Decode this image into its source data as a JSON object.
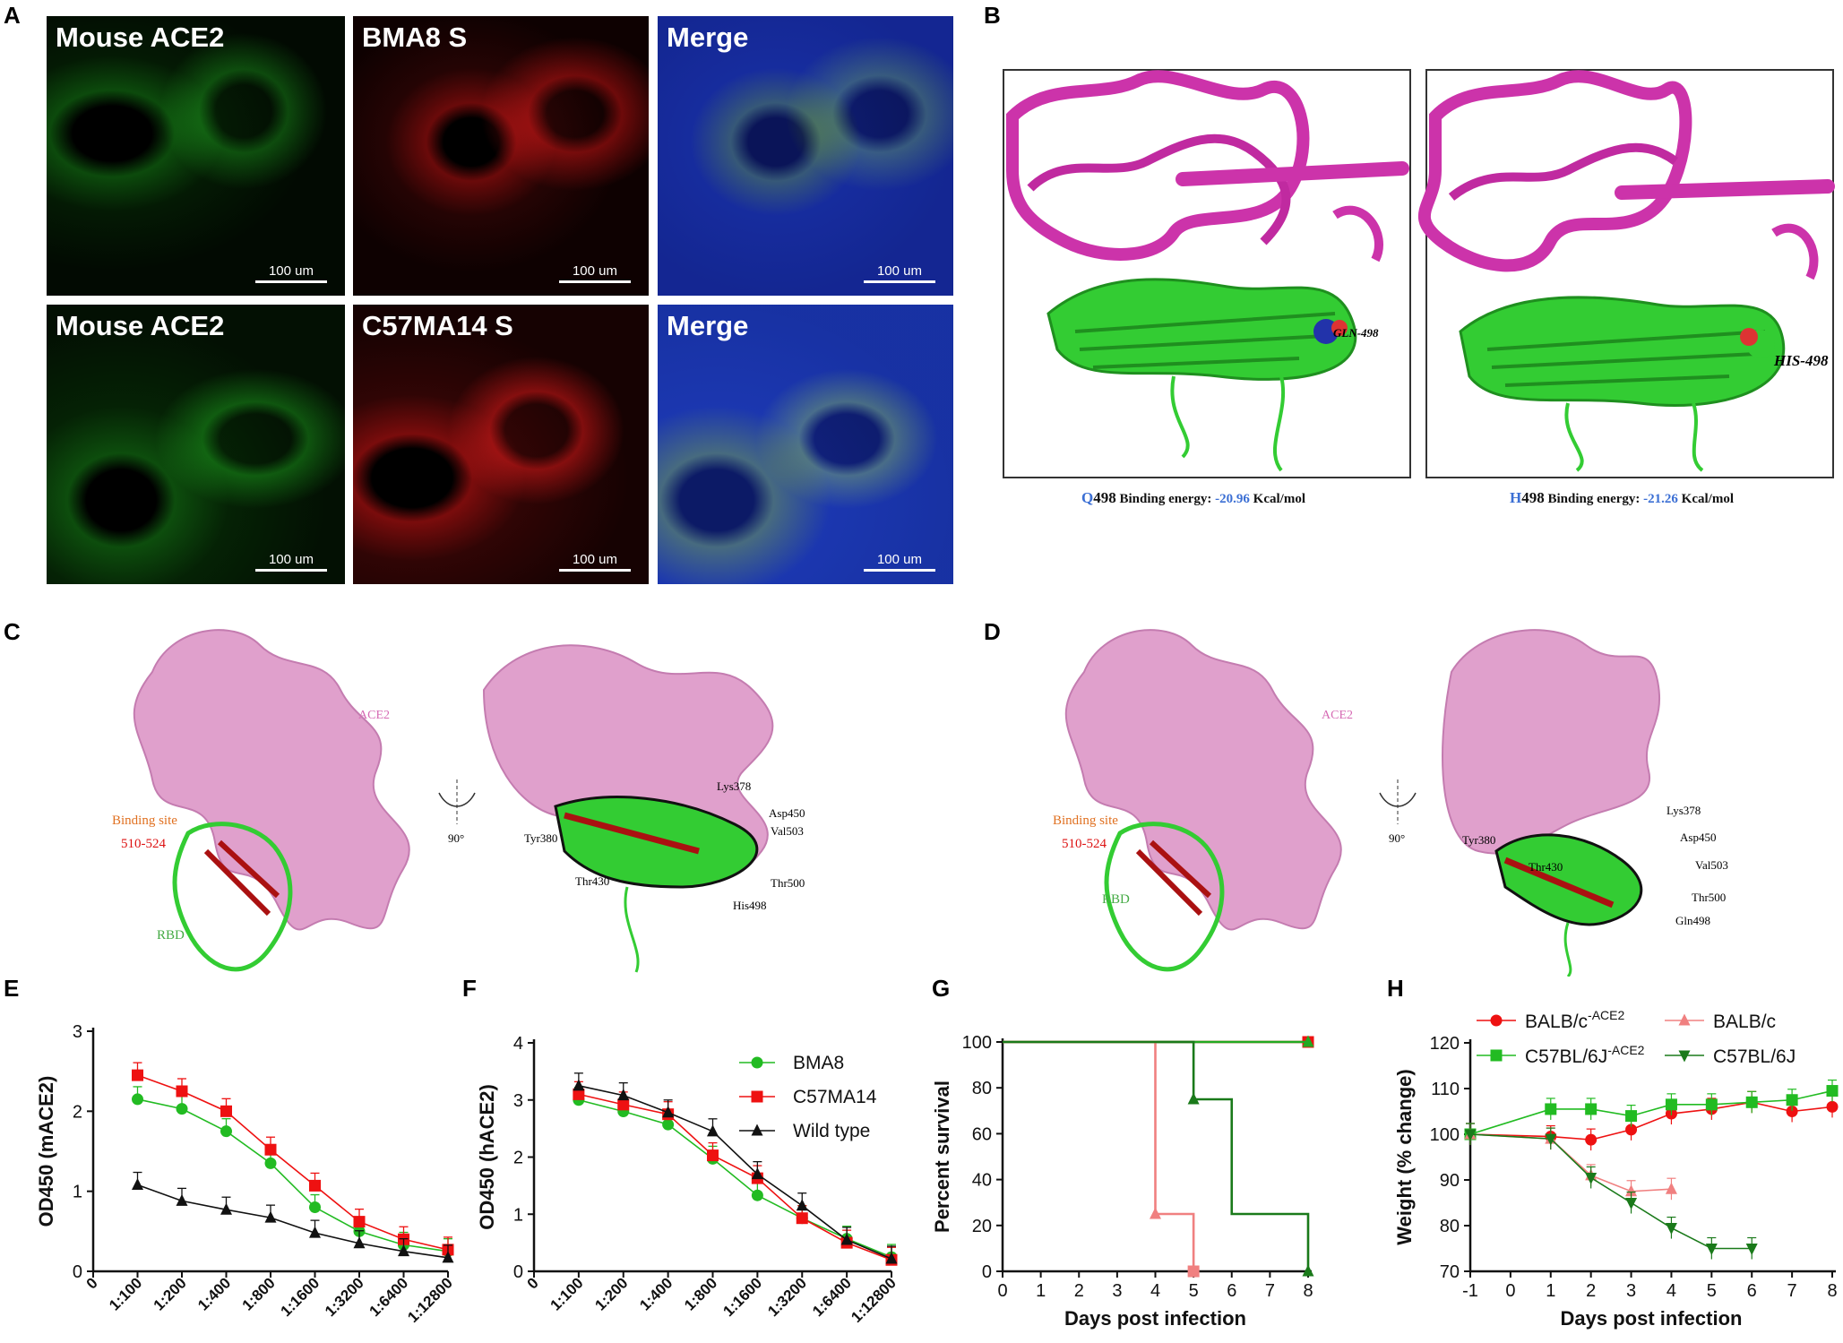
{
  "panel_letters": {
    "A": "A",
    "B": "B",
    "C": "C",
    "D": "D",
    "E": "E",
    "F": "F",
    "G": "G",
    "H": "H"
  },
  "panelA": {
    "tiles": [
      {
        "label": "Mouse ACE2",
        "color": "green",
        "scale": "100 um"
      },
      {
        "label": "BMA8   S",
        "color": "red",
        "scale": "100 um"
      },
      {
        "label": "Merge",
        "color": "merge",
        "scale": "100 um"
      },
      {
        "label": "Mouse ACE2",
        "color": "green",
        "scale": "100 um"
      },
      {
        "label": "C57MA14   S",
        "color": "red",
        "scale": "100 um"
      },
      {
        "label": "Merge",
        "color": "merge",
        "scale": "100 um"
      }
    ]
  },
  "panelB": {
    "left": {
      "residue_label": "GLN-498",
      "caption_res": "Q",
      "caption_num": "498",
      "caption_text": " Binding energy: ",
      "energy": "-20.96",
      "unit": " Kcal/mol"
    },
    "right": {
      "residue_label": "HIS-498",
      "caption_res": "H",
      "caption_num": "498",
      "caption_text": " Binding energy: ",
      "energy": "-21.26",
      "unit": " Kcal/mol"
    }
  },
  "panelC": {
    "ace2": "ACE2",
    "binding_site": "Binding site",
    "range": "510-524",
    "rbd": "RBD",
    "rotation": "90°",
    "residues": [
      "Lys378",
      "Asp450",
      "Val503",
      "Tyr380",
      "Thr430",
      "Thr500",
      "His498"
    ]
  },
  "panelD": {
    "ace2": "ACE2",
    "binding_site": "Binding site",
    "range": "510-524",
    "rbd": "RBD",
    "rotation": "90°",
    "residues": [
      "Lys378",
      "Tyr380",
      "Asp450",
      "Thr430",
      "Val503",
      "Thr500",
      "Gln498"
    ]
  },
  "chart_data": [
    {
      "panel": "E",
      "type": "line",
      "categories": [
        "1:100",
        "1:200",
        "1:400",
        "1:800",
        "1:1600",
        "1:3200",
        "1:6400",
        "1:12800"
      ],
      "ylabel": "OD450 (mACE2)",
      "ylim": [
        0,
        3
      ],
      "yticks": [
        0,
        1,
        2,
        3
      ],
      "xtick_first": "0",
      "series": [
        {
          "name": "BMA8",
          "color": "#22bb22",
          "marker": "circle",
          "values": [
            2.15,
            2.03,
            1.75,
            1.35,
            0.8,
            0.5,
            0.33,
            0.25
          ]
        },
        {
          "name": "C57MA14",
          "color": "#ee1111",
          "marker": "square",
          "values": [
            2.45,
            2.25,
            2.0,
            1.52,
            1.07,
            0.62,
            0.4,
            0.27
          ]
        },
        {
          "name": "Wild type",
          "color": "#111111",
          "marker": "triangle",
          "values": [
            1.08,
            0.88,
            0.77,
            0.67,
            0.48,
            0.35,
            0.25,
            0.17
          ]
        }
      ]
    },
    {
      "panel": "F",
      "type": "line",
      "categories": [
        "1:100",
        "1:200",
        "1:400",
        "1:800",
        "1:1600",
        "1:3200",
        "1:6400",
        "1:12800"
      ],
      "ylabel": "OD450 (hACE2)",
      "ylim": [
        0,
        4
      ],
      "yticks": [
        0,
        1,
        2,
        3,
        4
      ],
      "xtick_first": "0",
      "legend": "top-right",
      "series": [
        {
          "name": "BMA8",
          "color": "#22bb22",
          "marker": "circle",
          "values": [
            3.0,
            2.8,
            2.57,
            1.97,
            1.33,
            0.93,
            0.57,
            0.25
          ]
        },
        {
          "name": "C57MA14",
          "color": "#ee1111",
          "marker": "square",
          "values": [
            3.1,
            2.92,
            2.75,
            2.03,
            1.63,
            0.93,
            0.5,
            0.2
          ]
        },
        {
          "name": "Wild type",
          "color": "#111111",
          "marker": "triangle",
          "values": [
            3.25,
            3.08,
            2.78,
            2.45,
            1.7,
            1.15,
            0.55,
            0.22
          ]
        }
      ]
    },
    {
      "panel": "G",
      "type": "line",
      "xlabel": "Days post infection",
      "ylabel": "Percent survival",
      "xlim": [
        0,
        8
      ],
      "ylim": [
        0,
        100
      ],
      "xticks": [
        0,
        1,
        2,
        3,
        4,
        5,
        6,
        7,
        8
      ],
      "yticks": [
        0,
        20,
        40,
        60,
        80,
        100
      ],
      "series": [
        {
          "name": "BALB/c-ACE2",
          "color": "#ee1111",
          "x": [
            0,
            8
          ],
          "y": [
            100,
            100
          ]
        },
        {
          "name": "C57BL/6J-ACE2",
          "color": "#22aa22",
          "x": [
            0,
            8
          ],
          "y": [
            100,
            100
          ]
        },
        {
          "name": "BALB/c",
          "color": "#f08080",
          "x": [
            0,
            4,
            4,
            5,
            5
          ],
          "y": [
            100,
            100,
            25,
            25,
            0
          ]
        },
        {
          "name": "C57BL/6J",
          "color": "#1a7a1a",
          "x": [
            0,
            5,
            5,
            6,
            6,
            8,
            8
          ],
          "y": [
            100,
            100,
            75,
            75,
            25,
            25,
            0
          ]
        }
      ]
    },
    {
      "panel": "H",
      "type": "line",
      "xlabel": "Days post infection",
      "ylabel": "Weight (% change)",
      "xlim": [
        -1,
        8
      ],
      "ylim": [
        70,
        120
      ],
      "xticks": [
        -1,
        0,
        1,
        2,
        3,
        4,
        5,
        6,
        7,
        8
      ],
      "yticks": [
        70,
        80,
        90,
        100,
        110,
        120
      ],
      "legend": "top",
      "series": [
        {
          "name": "BALB/c",
          "sup": "-ACE2",
          "color": "#ee1111",
          "marker": "circle",
          "x": [
            -1,
            1,
            2,
            3,
            4,
            5,
            6,
            7,
            8
          ],
          "y": [
            100,
            99.5,
            98.8,
            101,
            104.5,
            105.5,
            107,
            105,
            106
          ]
        },
        {
          "name": "C57BL/6J",
          "sup": "-ACE2",
          "color": "#22bb22",
          "marker": "square",
          "x": [
            -1,
            1,
            2,
            3,
            4,
            5,
            6,
            7,
            8
          ],
          "y": [
            100,
            105.5,
            105.5,
            104,
            106.5,
            106.5,
            107,
            107.5,
            109.5
          ]
        },
        {
          "name": "BALB/c",
          "sup": "",
          "color": "#f08080",
          "marker": "triangle",
          "x": [
            -1,
            1,
            2,
            3,
            4
          ],
          "y": [
            100,
            99,
            91,
            87.5,
            88
          ]
        },
        {
          "name": "C57BL/6J",
          "sup": "",
          "color": "#1a7a1a",
          "marker": "tridown",
          "x": [
            -1,
            1,
            2,
            3,
            4,
            5,
            6
          ],
          "y": [
            100,
            99,
            90.5,
            85,
            79.5,
            75,
            75
          ]
        }
      ]
    }
  ]
}
